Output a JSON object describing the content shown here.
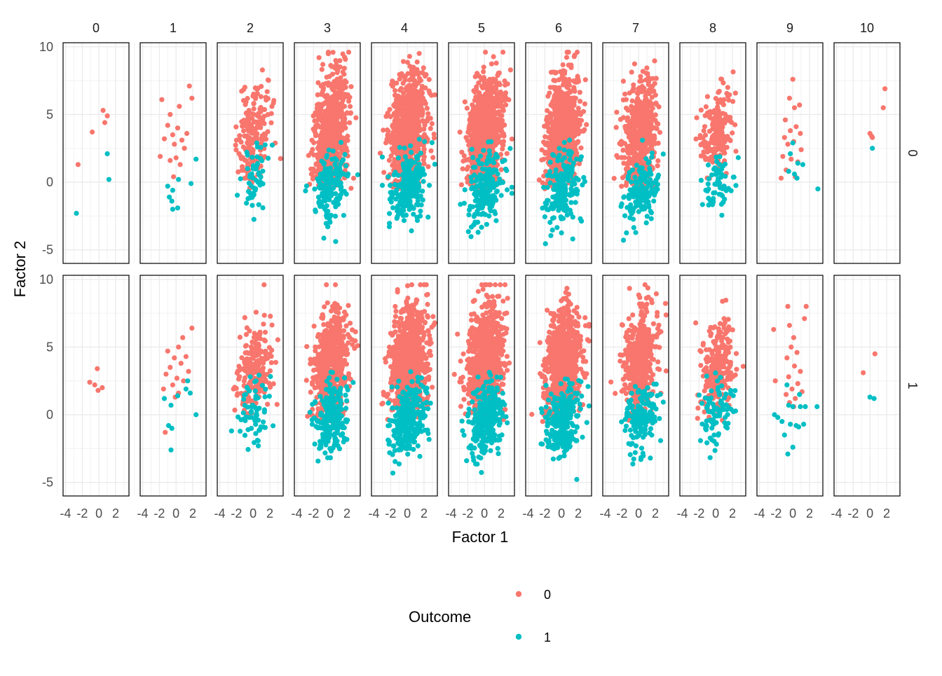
{
  "chart_data": {
    "type": "scatter",
    "title": "",
    "xlabel": "Factor 1",
    "ylabel": "Factor 2",
    "xlim": [
      -4.3,
      3.6
    ],
    "ylim": [
      -6,
      10.3
    ],
    "x_ticks": [
      -4,
      -2,
      0,
      2
    ],
    "x_tick_labels": [
      "-4",
      "-2",
      "0",
      "2"
    ],
    "y_ticks": [
      -5,
      0,
      5,
      10
    ],
    "y_tick_labels": [
      "-5",
      "0",
      "5",
      "10"
    ],
    "grid": true,
    "facet_columns": [
      "0",
      "1",
      "2",
      "3",
      "4",
      "5",
      "6",
      "7",
      "8",
      "9",
      "10"
    ],
    "facet_rows": [
      "0",
      "1"
    ],
    "legend": {
      "title": "Outcome",
      "position": "bottom",
      "entries": [
        {
          "label": "0",
          "color": "#F8766D"
        },
        {
          "label": "1",
          "color": "#00BFC4"
        }
      ]
    },
    "panels": [
      {
        "row": "0",
        "col": "0",
        "points": [
          {
            "x": -2.5,
            "y": 1.3,
            "o": 0
          },
          {
            "x": -0.8,
            "y": 3.7,
            "o": 0
          },
          {
            "x": 0.5,
            "y": 5.3,
            "o": 0
          },
          {
            "x": 1.0,
            "y": 4.9,
            "o": 0
          },
          {
            "x": 0.7,
            "y": 4.4,
            "o": 0
          },
          {
            "x": 1.0,
            "y": 2.1,
            "o": 1
          },
          {
            "x": 1.2,
            "y": 0.2,
            "o": 1
          },
          {
            "x": -2.7,
            "y": -2.3,
            "o": 1
          }
        ]
      },
      {
        "row": "0",
        "col": "1",
        "points": [
          {
            "x": -1.7,
            "y": 6.1,
            "o": 0
          },
          {
            "x": 1.6,
            "y": 7.1,
            "o": 0
          },
          {
            "x": 1.9,
            "y": 6.2,
            "o": 0
          },
          {
            "x": 0.4,
            "y": 5.6,
            "o": 0
          },
          {
            "x": -0.7,
            "y": 5.0,
            "o": 0
          },
          {
            "x": -1.0,
            "y": 4.2,
            "o": 0
          },
          {
            "x": 0.2,
            "y": 4.0,
            "o": 0
          },
          {
            "x": 1.3,
            "y": 3.6,
            "o": 0
          },
          {
            "x": -0.4,
            "y": 3.5,
            "o": 0
          },
          {
            "x": -1.4,
            "y": 3.2,
            "o": 0
          },
          {
            "x": 0.7,
            "y": 3.1,
            "o": 0
          },
          {
            "x": -0.2,
            "y": 2.8,
            "o": 0
          },
          {
            "x": 1.0,
            "y": 2.5,
            "o": 0
          },
          {
            "x": -1.9,
            "y": 1.9,
            "o": 0
          },
          {
            "x": 0.0,
            "y": 1.8,
            "o": 0
          },
          {
            "x": -0.7,
            "y": 1.6,
            "o": 0
          },
          {
            "x": 0.5,
            "y": 1.3,
            "o": 0
          },
          {
            "x": -0.3,
            "y": 0.4,
            "o": 0
          },
          {
            "x": 2.4,
            "y": 1.7,
            "o": 1
          },
          {
            "x": -1.0,
            "y": -0.3,
            "o": 1
          },
          {
            "x": -0.4,
            "y": -0.6,
            "o": 1
          },
          {
            "x": 0.3,
            "y": 0.2,
            "o": 1
          },
          {
            "x": -0.5,
            "y": -1.4,
            "o": 1
          },
          {
            "x": 0.2,
            "y": -1.9,
            "o": 1
          },
          {
            "x": -0.8,
            "y": -1.1,
            "o": 1
          },
          {
            "x": 1.8,
            "y": -0.1,
            "o": 1
          },
          {
            "x": -0.4,
            "y": -2.0,
            "o": 1
          }
        ]
      },
      {
        "row": "0",
        "col": "2",
        "points": [],
        "gen": {
          "n0": 190,
          "n1": 55,
          "xs": 1.0,
          "ys0": 1.7,
          "ys1": 1.2,
          "m0": 3.5,
          "m1": 0.2,
          "seed": 11
        }
      },
      {
        "row": "0",
        "col": "3",
        "points": [],
        "gen": {
          "n0": 650,
          "n1": 160,
          "xs": 1.0,
          "ys0": 2.1,
          "ys1": 1.2,
          "m0": 3.6,
          "m1": -0.2,
          "seed": 12
        }
      },
      {
        "row": "0",
        "col": "4",
        "points": [],
        "gen": {
          "n0": 850,
          "n1": 230,
          "xs": 1.05,
          "ys0": 2.0,
          "ys1": 1.3,
          "m0": 3.7,
          "m1": -0.2,
          "seed": 13
        }
      },
      {
        "row": "0",
        "col": "5",
        "points": [],
        "gen": {
          "n0": 850,
          "n1": 200,
          "xs": 1.05,
          "ys0": 2.0,
          "ys1": 1.3,
          "m0": 3.6,
          "m1": -0.5,
          "seed": 14
        }
      },
      {
        "row": "0",
        "col": "6",
        "points": [],
        "gen": {
          "n0": 750,
          "n1": 200,
          "xs": 1.05,
          "ys0": 2.0,
          "ys1": 1.3,
          "m0": 3.6,
          "m1": -0.6,
          "seed": 15
        }
      },
      {
        "row": "0",
        "col": "7",
        "points": [],
        "gen": {
          "n0": 500,
          "n1": 150,
          "xs": 1.0,
          "ys0": 2.0,
          "ys1": 1.2,
          "m0": 3.4,
          "m1": -0.8,
          "seed": 16
        }
      },
      {
        "row": "0",
        "col": "8",
        "points": [],
        "gen": {
          "n0": 190,
          "n1": 60,
          "xs": 1.0,
          "ys0": 1.8,
          "ys1": 1.2,
          "m0": 3.6,
          "m1": -0.2,
          "seed": 17
        }
      },
      {
        "row": "0",
        "col": "9",
        "points": [
          {
            "x": 0.0,
            "y": 7.6,
            "o": 0
          },
          {
            "x": -0.4,
            "y": 6.2,
            "o": 0
          },
          {
            "x": 0.8,
            "y": 5.7,
            "o": 0
          },
          {
            "x": 0.2,
            "y": 5.5,
            "o": 0
          },
          {
            "x": -0.9,
            "y": 4.6,
            "o": 0
          },
          {
            "x": 0.4,
            "y": 4.1,
            "o": 0
          },
          {
            "x": -0.3,
            "y": 3.8,
            "o": 0
          },
          {
            "x": 0.9,
            "y": 3.6,
            "o": 0
          },
          {
            "x": -1.0,
            "y": 3.3,
            "o": 0
          },
          {
            "x": 0.1,
            "y": 3.0,
            "o": 0
          },
          {
            "x": -0.6,
            "y": 2.8,
            "o": 0
          },
          {
            "x": 1.0,
            "y": 2.4,
            "o": 0
          },
          {
            "x": -1.2,
            "y": 1.9,
            "o": 0
          },
          {
            "x": -0.2,
            "y": 1.7,
            "o": 0
          },
          {
            "x": 0.6,
            "y": 1.5,
            "o": 0
          },
          {
            "x": -0.8,
            "y": 0.9,
            "o": 0
          },
          {
            "x": -1.4,
            "y": 0.3,
            "o": 0
          },
          {
            "x": 0.3,
            "y": 0.4,
            "o": 0
          },
          {
            "x": 0.0,
            "y": 2.9,
            "o": 1
          },
          {
            "x": -0.3,
            "y": 2.1,
            "o": 1
          },
          {
            "x": 0.6,
            "y": 1.4,
            "o": 1
          },
          {
            "x": 1.2,
            "y": 1.3,
            "o": 1
          },
          {
            "x": -0.5,
            "y": 0.8,
            "o": 1
          },
          {
            "x": 0.2,
            "y": 0.6,
            "o": 1
          },
          {
            "x": 0.5,
            "y": 0.3,
            "o": 1
          },
          {
            "x": 3.0,
            "y": -0.5,
            "o": 1
          }
        ]
      },
      {
        "row": "0",
        "col": "10",
        "points": [
          {
            "x": 1.8,
            "y": 6.9,
            "o": 0
          },
          {
            "x": 1.6,
            "y": 5.5,
            "o": 0
          },
          {
            "x": 0.0,
            "y": 3.6,
            "o": 0
          },
          {
            "x": 0.3,
            "y": 3.3,
            "o": 0
          },
          {
            "x": 0.2,
            "y": 3.4,
            "o": 0
          },
          {
            "x": 0.3,
            "y": 2.5,
            "o": 1
          }
        ]
      },
      {
        "row": "1",
        "col": "0",
        "points": [
          {
            "x": -1.1,
            "y": 2.4,
            "o": 0
          },
          {
            "x": -0.2,
            "y": 3.4,
            "o": 0
          },
          {
            "x": 0.4,
            "y": 2.0,
            "o": 0
          },
          {
            "x": -0.1,
            "y": 1.8,
            "o": 0
          },
          {
            "x": -0.5,
            "y": 2.2,
            "o": 0
          }
        ]
      },
      {
        "row": "1",
        "col": "1",
        "points": [
          {
            "x": 1.9,
            "y": 6.4,
            "o": 0
          },
          {
            "x": 0.8,
            "y": 5.7,
            "o": 0
          },
          {
            "x": 0.3,
            "y": 5.0,
            "o": 0
          },
          {
            "x": -1.0,
            "y": 4.7,
            "o": 0
          },
          {
            "x": 1.2,
            "y": 4.3,
            "o": 0
          },
          {
            "x": -0.2,
            "y": 4.2,
            "o": 0
          },
          {
            "x": 0.6,
            "y": 3.8,
            "o": 0
          },
          {
            "x": -0.7,
            "y": 3.5,
            "o": 0
          },
          {
            "x": 1.5,
            "y": 3.2,
            "o": 0
          },
          {
            "x": -1.2,
            "y": 3.0,
            "o": 0
          },
          {
            "x": 0.1,
            "y": 2.7,
            "o": 0
          },
          {
            "x": -0.4,
            "y": 2.2,
            "o": 0
          },
          {
            "x": 0.9,
            "y": 2.5,
            "o": 0
          },
          {
            "x": -1.5,
            "y": 1.9,
            "o": 0
          },
          {
            "x": 0.3,
            "y": 1.6,
            "o": 0
          },
          {
            "x": -0.1,
            "y": 1.3,
            "o": 0
          },
          {
            "x": -1.3,
            "y": -1.3,
            "o": 0
          },
          {
            "x": 1.4,
            "y": 2.5,
            "o": 1
          },
          {
            "x": -1.4,
            "y": 1.2,
            "o": 1
          },
          {
            "x": 0.2,
            "y": 1.4,
            "o": 1
          },
          {
            "x": 1.7,
            "y": 1.6,
            "o": 1
          },
          {
            "x": 1.2,
            "y": 1.9,
            "o": 1
          },
          {
            "x": -0.6,
            "y": 0.7,
            "o": 1
          },
          {
            "x": -0.9,
            "y": -0.8,
            "o": 1
          },
          {
            "x": -0.5,
            "y": -1.0,
            "o": 1
          },
          {
            "x": 2.4,
            "y": 0.0,
            "o": 1
          },
          {
            "x": -0.6,
            "y": -2.6,
            "o": 1
          }
        ]
      },
      {
        "row": "1",
        "col": "2",
        "points": [],
        "gen": {
          "n0": 210,
          "n1": 65,
          "xs": 1.1,
          "ys0": 1.6,
          "ys1": 1.3,
          "m0": 3.4,
          "m1": 0.3,
          "seed": 21
        }
      },
      {
        "row": "1",
        "col": "3",
        "points": [],
        "gen": {
          "n0": 600,
          "n1": 200,
          "xs": 1.0,
          "ys0": 2.0,
          "ys1": 1.3,
          "m0": 3.7,
          "m1": -0.2,
          "seed": 22
        }
      },
      {
        "row": "1",
        "col": "4",
        "points": [],
        "gen": {
          "n0": 850,
          "n1": 280,
          "xs": 1.05,
          "ys0": 2.0,
          "ys1": 1.3,
          "m0": 3.8,
          "m1": -0.3,
          "seed": 23
        }
      },
      {
        "row": "1",
        "col": "5",
        "points": [],
        "gen": {
          "n0": 850,
          "n1": 270,
          "xs": 1.05,
          "ys0": 2.0,
          "ys1": 1.3,
          "m0": 3.9,
          "m1": -0.4,
          "seed": 24
        }
      },
      {
        "row": "1",
        "col": "6",
        "points": [],
        "gen": {
          "n0": 750,
          "n1": 240,
          "xs": 1.05,
          "ys0": 2.0,
          "ys1": 1.3,
          "m0": 3.8,
          "m1": -0.5,
          "seed": 25
        }
      },
      {
        "row": "1",
        "col": "7",
        "points": [],
        "gen": {
          "n0": 480,
          "n1": 160,
          "xs": 1.0,
          "ys0": 2.0,
          "ys1": 1.2,
          "m0": 3.8,
          "m1": -0.4,
          "seed": 26
        }
      },
      {
        "row": "1",
        "col": "8",
        "points": [],
        "gen": {
          "n0": 230,
          "n1": 90,
          "xs": 1.0,
          "ys0": 1.6,
          "ys1": 1.2,
          "m0": 3.4,
          "m1": 0.1,
          "seed": 27
        }
      },
      {
        "row": "1",
        "col": "9",
        "points": [
          {
            "x": 1.6,
            "y": 8.0,
            "o": 0
          },
          {
            "x": -0.6,
            "y": 8.0,
            "o": 0
          },
          {
            "x": 1.4,
            "y": 7.1,
            "o": 0
          },
          {
            "x": -0.4,
            "y": 6.6,
            "o": 0
          },
          {
            "x": -2.3,
            "y": 6.3,
            "o": 0
          },
          {
            "x": 0.1,
            "y": 5.7,
            "o": 0
          },
          {
            "x": -0.2,
            "y": 5.0,
            "o": 0
          },
          {
            "x": 0.5,
            "y": 4.6,
            "o": 0
          },
          {
            "x": -0.7,
            "y": 4.2,
            "o": 0
          },
          {
            "x": 0.2,
            "y": 3.6,
            "o": 0
          },
          {
            "x": 0.9,
            "y": 3.2,
            "o": 0
          },
          {
            "x": -0.5,
            "y": 2.8,
            "o": 0
          },
          {
            "x": -2.1,
            "y": 2.5,
            "o": 0
          },
          {
            "x": 0.6,
            "y": 2.3,
            "o": 0
          },
          {
            "x": -0.1,
            "y": 1.9,
            "o": 0
          },
          {
            "x": 1.1,
            "y": 1.7,
            "o": 0
          },
          {
            "x": -0.8,
            "y": 1.5,
            "o": 0
          },
          {
            "x": 0.3,
            "y": 1.2,
            "o": 0
          },
          {
            "x": -0.4,
            "y": 0.9,
            "o": 0
          },
          {
            "x": 0.1,
            "y": 0.6,
            "o": 0
          },
          {
            "x": -0.7,
            "y": 2.2,
            "o": 1
          },
          {
            "x": 0.8,
            "y": 1.5,
            "o": 1
          },
          {
            "x": -2.2,
            "y": 0.0,
            "o": 1
          },
          {
            "x": -1.8,
            "y": -0.2,
            "o": 1
          },
          {
            "x": -0.5,
            "y": 0.7,
            "o": 1
          },
          {
            "x": 0.0,
            "y": 0.6,
            "o": 1
          },
          {
            "x": 0.9,
            "y": 0.6,
            "o": 1
          },
          {
            "x": 1.5,
            "y": 0.6,
            "o": 1
          },
          {
            "x": 2.9,
            "y": 0.6,
            "o": 1
          },
          {
            "x": -1.3,
            "y": -0.5,
            "o": 1
          },
          {
            "x": -0.3,
            "y": -0.7,
            "o": 1
          },
          {
            "x": 0.4,
            "y": -0.8,
            "o": 1
          },
          {
            "x": 1.3,
            "y": -0.7,
            "o": 1
          },
          {
            "x": -1.0,
            "y": -1.5,
            "o": 1
          },
          {
            "x": 0.0,
            "y": -2.4,
            "o": 1
          },
          {
            "x": -0.6,
            "y": -2.9,
            "o": 1
          },
          {
            "x": 0.7,
            "y": -0.9,
            "o": 1
          }
        ]
      },
      {
        "row": "1",
        "col": "10",
        "points": [
          {
            "x": 0.6,
            "y": 4.5,
            "o": 0
          },
          {
            "x": -0.8,
            "y": 3.1,
            "o": 0
          },
          {
            "x": 0.0,
            "y": 1.3,
            "o": 1
          },
          {
            "x": 0.5,
            "y": 1.2,
            "o": 1
          }
        ]
      }
    ]
  }
}
